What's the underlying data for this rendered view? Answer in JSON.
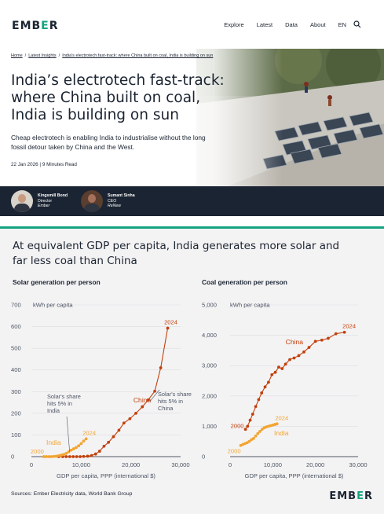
{
  "header": {
    "logo_left": "EMB",
    "logo_accent": "E",
    "logo_right": "R",
    "nav": [
      "Explore",
      "Latest",
      "Data",
      "About",
      "EN"
    ]
  },
  "breadcrumb": [
    "Home",
    "Latest Insights",
    "India's electrotech fast-track: where China built on coal, India is building on sun"
  ],
  "article": {
    "title_lines": [
      "India’s electrotech fast-track:",
      "where China built on coal,",
      "India is building on sun"
    ],
    "subtitle_lines": [
      "Cheap electrotech is enabling India to industrialise without the long",
      "fossil detour taken by China and the West."
    ],
    "date": "22 Jan 2026",
    "read_time": "9 Minutes Read"
  },
  "authors": [
    {
      "name": "Kingsmill Bond",
      "role": "Director",
      "org": "Ember"
    },
    {
      "name": "Sumant Sinha",
      "role": "CEO",
      "org": "ReNew"
    }
  ],
  "figure": {
    "title_lines": [
      "At equivalent GDP per capita, India generates more solar and",
      "far less coal than China"
    ],
    "source": "Sources: Ember Electricity data, World Bank Group",
    "logo_left": "EMB",
    "logo_accent": "E",
    "logo_right": "R"
  },
  "chart_data": [
    {
      "type": "line",
      "title": "Solar generation per person",
      "ylabel": "kWh per capita",
      "xlabel": "GDP per capita, PPP (international $)",
      "xlim": [
        0,
        30000
      ],
      "ylim": [
        0,
        700
      ],
      "x_ticks": [
        "0",
        "10,000",
        "20,000",
        "30,000"
      ],
      "y_ticks": [
        "0",
        "100",
        "200",
        "300",
        "400",
        "500",
        "600",
        "700"
      ],
      "colors": {
        "China": "#c2410c",
        "India": "#f2a531"
      },
      "series": [
        {
          "name": "China",
          "start_label": "",
          "end_label": "2024",
          "points": [
            [
              5500,
              0
            ],
            [
              6300,
              0
            ],
            [
              7000,
              0
            ],
            [
              7700,
              0
            ],
            [
              8400,
              0
            ],
            [
              9100,
              0
            ],
            [
              9800,
              0
            ],
            [
              10500,
              1
            ],
            [
              11300,
              2
            ],
            [
              12100,
              5
            ],
            [
              12900,
              12
            ],
            [
              13700,
              25
            ],
            [
              14600,
              48
            ],
            [
              15500,
              66
            ],
            [
              16500,
              92
            ],
            [
              17600,
              122
            ],
            [
              18600,
              155
            ],
            [
              19800,
              175
            ],
            [
              21000,
              200
            ],
            [
              22300,
              230
            ],
            [
              23500,
              262
            ],
            [
              24800,
              302
            ],
            [
              26000,
              410
            ],
            [
              27400,
              593
            ]
          ]
        },
        {
          "name": "India",
          "start_label": "2000",
          "end_label": "2024",
          "points": [
            [
              2500,
              0
            ],
            [
              3000,
              0
            ],
            [
              3500,
              0
            ],
            [
              4000,
              0
            ],
            [
              4500,
              1
            ],
            [
              5000,
              2
            ],
            [
              5500,
              4
            ],
            [
              6000,
              7
            ],
            [
              6500,
              10
            ],
            [
              7000,
              15
            ],
            [
              7500,
              22
            ],
            [
              8000,
              30
            ],
            [
              8500,
              36
            ],
            [
              9000,
              42
            ],
            [
              9500,
              50
            ],
            [
              10000,
              60
            ],
            [
              10500,
              72
            ],
            [
              11000,
              82
            ]
          ]
        }
      ],
      "annotations": [
        {
          "text_lines": [
            "Solar's share",
            "hits 5% in",
            "India"
          ],
          "target": [
            8000,
            30
          ]
        },
        {
          "text_lines": [
            "Solar's share",
            "hits 5% in",
            "China"
          ],
          "target": [
            23500,
            262
          ]
        }
      ]
    },
    {
      "type": "line",
      "title": "Coal generation per person",
      "ylabel": "kWh per capita",
      "xlabel": "GDP per capita, PPP (international $)",
      "xlim": [
        0,
        30000
      ],
      "ylim": [
        0,
        5000
      ],
      "x_ticks": [
        "0",
        "10,000",
        "20,000",
        "30,000"
      ],
      "y_ticks": [
        "0",
        "1,000",
        "2,000",
        "3,000",
        "4,000",
        "5,000"
      ],
      "colors": {
        "China": "#c2410c",
        "India": "#f2a531"
      },
      "series": [
        {
          "name": "China",
          "start_label": "2000",
          "end_label": "2024",
          "points": [
            [
              3600,
              900
            ],
            [
              4100,
              1000
            ],
            [
              4700,
              1200
            ],
            [
              5300,
              1400
            ],
            [
              6000,
              1650
            ],
            [
              6700,
              1880
            ],
            [
              7400,
              2100
            ],
            [
              8200,
              2300
            ],
            [
              9000,
              2450
            ],
            [
              9800,
              2700
            ],
            [
              10600,
              2780
            ],
            [
              11400,
              2950
            ],
            [
              12200,
              2900
            ],
            [
              13000,
              3050
            ],
            [
              14000,
              3200
            ],
            [
              15000,
              3250
            ],
            [
              16100,
              3330
            ],
            [
              17300,
              3450
            ],
            [
              18500,
              3600
            ],
            [
              20000,
              3800
            ],
            [
              21500,
              3840
            ],
            [
              23000,
              3900
            ],
            [
              24800,
              4050
            ],
            [
              26800,
              4100
            ]
          ]
        },
        {
          "name": "India",
          "start_label": "2000",
          "end_label": "2024",
          "points": [
            [
              2500,
              370
            ],
            [
              3000,
              400
            ],
            [
              3500,
              430
            ],
            [
              4000,
              460
            ],
            [
              4500,
              500
            ],
            [
              5000,
              560
            ],
            [
              5500,
              600
            ],
            [
              6000,
              680
            ],
            [
              6500,
              760
            ],
            [
              7000,
              830
            ],
            [
              7500,
              900
            ],
            [
              8000,
              950
            ],
            [
              8500,
              980
            ],
            [
              9000,
              1000
            ],
            [
              9500,
              1020
            ],
            [
              10000,
              1040
            ],
            [
              10500,
              1060
            ],
            [
              11000,
              1080
            ]
          ]
        }
      ]
    }
  ]
}
